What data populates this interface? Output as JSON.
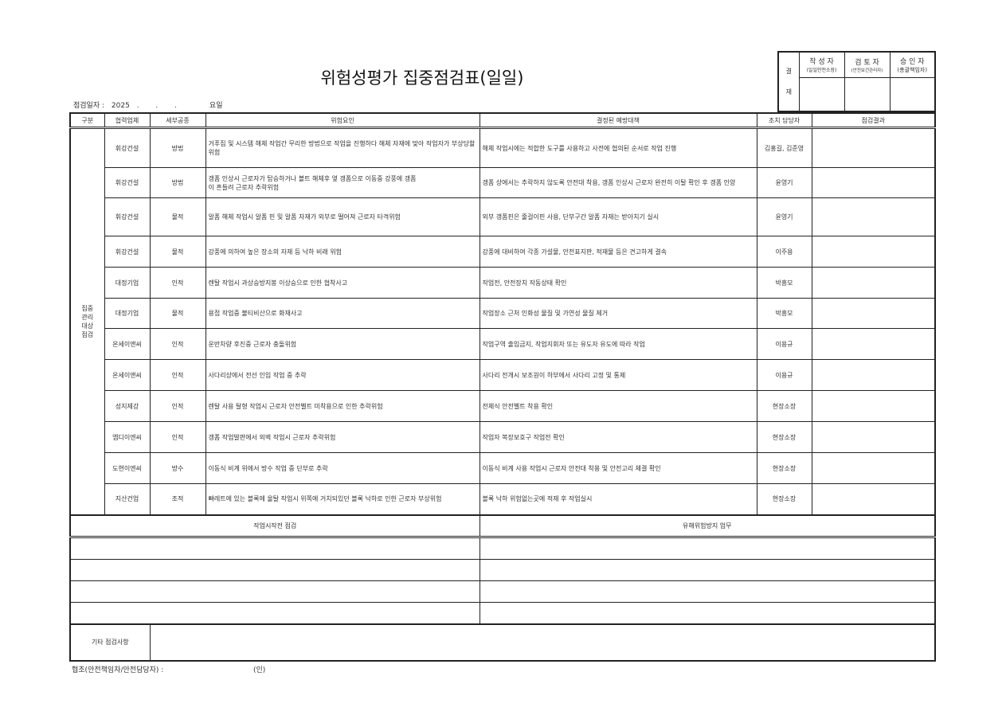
{
  "title": "위험성평가 집중점검표(일일)",
  "date_line": {
    "label": "점검일자 :",
    "year": "2025",
    "sep1": ".",
    "sep2": ".",
    "sep3": ".",
    "weekday": "요일"
  },
  "approval": {
    "label_top": "결",
    "label_bottom": "재",
    "columns": [
      {
        "role": "작 성 자",
        "title": "(일일안전소장)"
      },
      {
        "role": "검 토 자",
        "title": "(안전보건관리자)"
      },
      {
        "role": "승 인 자",
        "title": "(총괄책임자)"
      }
    ]
  },
  "table": {
    "headers": [
      "구분",
      "협력업체",
      "세부공종",
      "위험요인",
      "결정된 예방대책",
      "조치 담당자",
      "점검결과"
    ],
    "group_label": "집중\n관리\n대상\n점검",
    "rows": [
      {
        "company": "휘강건설",
        "trade": "방법",
        "risk": "거푸집 및 시스템 해체 작업간 무리한 방법으로 작업을 진행하다 해체 자재에 맞아 작업자가 부상당할 위험",
        "measure": "해체 작업시에는 적합한 도구를 사용하고 사전에 협의된 순서로 작업 진행",
        "manager": "김홍길, 김준영",
        "result": ""
      },
      {
        "company": "휘강건설",
        "trade": "방법",
        "risk": "갱폼 인상시 근로자가 탑승하거나 볼트 해체후 옆 갱폼으로 이동중 강풍에 갱폼\n이 흔들려 근로자 추락위험",
        "measure": "갱폼 상에서는 추락하지 않도록 안전대 착용, 갱폼 인상시 근로자 완전히 이탈 확인 후 갱폼 인양",
        "manager": "윤영기",
        "result": ""
      },
      {
        "company": "휘강건설",
        "trade": "물적",
        "risk": "알폼 해체 작업시 알폼 핀 및 알폼 자재가 외부로 떨어져 근로자 타격위험",
        "measure": "외부 갱폼핀은 줄걸이핀 사용, 단부구간 알폼 자재는 받아치기 실시",
        "manager": "윤영기",
        "result": ""
      },
      {
        "company": "휘강건설",
        "trade": "물적",
        "risk": "강풍에 의하여 높은 장소의 자재 등 낙하 비래 위험",
        "measure": "강풍에 대비하여 각종 가설물, 안전표지판, 적재물 등은 견고하게 결속",
        "manager": "이주용",
        "result": ""
      },
      {
        "company": "대정기업",
        "trade": "인적",
        "risk": "렌탈 작업시 과상승방지봉 이상승으로 인한 협착사고",
        "measure": "작업전, 안전장치 작동상태 확인",
        "manager": "박흥모",
        "result": ""
      },
      {
        "company": "대정기업",
        "trade": "물적",
        "risk": "용접 작업중 불티비산으로 화재사고",
        "measure": "작업장소 근처 인화성 물질 및 가연성 물질 제거",
        "manager": "박흥모",
        "result": ""
      },
      {
        "company": "온세이앤씨",
        "trade": "인적",
        "risk": "운반차량 후진중 근로자 충돌위험",
        "measure": "작업구역 출입금지, 작업지휘자 또는 유도자 유도에 따라 작업",
        "manager": "이용규",
        "result": ""
      },
      {
        "company": "온세이앤씨",
        "trade": "인적",
        "risk": "사다리상에서 전선 인입 작업 중 추락",
        "measure": "사다리 전개시 보조원이 하부에서 사다리 고정 및 통제",
        "manager": "이용규",
        "result": ""
      },
      {
        "company": "성지제강",
        "trade": "인적",
        "risk": "렌탈 사용 탈형 작업시 근로자 안전벨트 미착용으로 인한 추락위험",
        "measure": "전체식 안전벨트 착용 확인",
        "manager": "현장소장",
        "result": ""
      },
      {
        "company": "엠디이엔씨",
        "trade": "인적",
        "risk": "갱폼 작업발판에서 외벽 작업시 근로자 추락위험",
        "measure": "작업자 복장보호구 작업전 확인",
        "manager": "현장소장",
        "result": ""
      },
      {
        "company": "도현이엔씨",
        "trade": "방수",
        "risk": "이동식 비계 위에서 방수 작업 중 단부로 추락",
        "measure": "이동식 비계 사용 작업시 근로자 안전대 착용 및 안전고리 체결 확인",
        "manager": "현장소장",
        "result": ""
      },
      {
        "company": "지산건업",
        "trade": "조적",
        "risk": "빠레트에 있는 블록에 울탈 작업시 위쪽에 거치되있던 블록 낙하로 인한 근로자 부상위험",
        "measure": "블록 낙하 위험없는곳에 적재 후 작업실시",
        "manager": "현장소장",
        "result": ""
      }
    ]
  },
  "bottom": {
    "left_header": "작업시작전 점검",
    "right_header": "유해위험방지 업무",
    "etc_label": "기타 점검사항"
  },
  "footer": {
    "label": "협조(안전책임자/안전담당자) :",
    "sign": "(인)"
  }
}
